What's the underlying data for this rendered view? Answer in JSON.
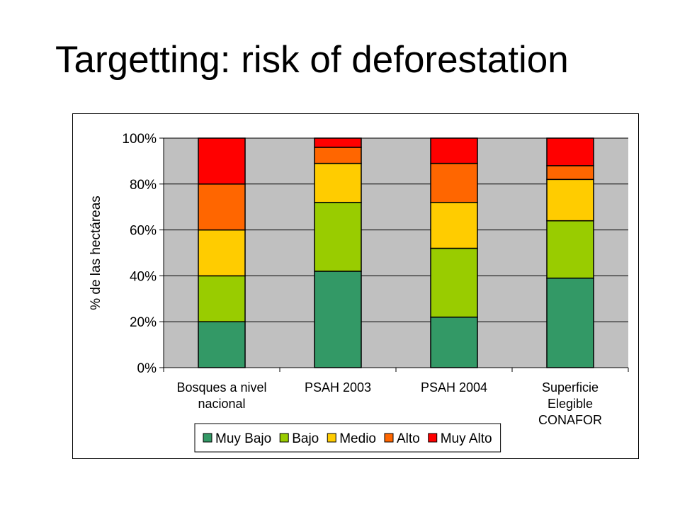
{
  "slide": {
    "title": "Targetting: risk of deforestation"
  },
  "colors": {
    "Muy Bajo": "#339966",
    "Bajo": "#99CC00",
    "Medio": "#FFCC00",
    "Alto": "#FF6600",
    "Muy Alto": "#FF0000",
    "plot_background": "#C0C0C0",
    "gridline": "#000000"
  },
  "chart_data": {
    "type": "bar",
    "stacked": true,
    "title": "",
    "ylabel": "% de las hectáreas",
    "xlabel": "",
    "ylim": [
      0,
      100
    ],
    "yticks": [
      "0%",
      "20%",
      "40%",
      "60%",
      "80%",
      "100%"
    ],
    "ytick_values": [
      0,
      20,
      40,
      60,
      80,
      100
    ],
    "grid": true,
    "legend_position": "bottom",
    "categories": [
      [
        "Bosques a nivel",
        "nacional"
      ],
      [
        "PSAH 2003"
      ],
      [
        "PSAH 2004"
      ],
      [
        "Superficie",
        "Elegible",
        "CONAFOR"
      ]
    ],
    "series": [
      {
        "name": "Muy Bajo",
        "values": [
          20,
          42,
          22,
          39
        ]
      },
      {
        "name": "Bajo",
        "values": [
          20,
          30,
          30,
          25
        ]
      },
      {
        "name": "Medio",
        "values": [
          20,
          17,
          20,
          18
        ]
      },
      {
        "name": "Alto",
        "values": [
          20,
          7,
          17,
          6
        ]
      },
      {
        "name": "Muy Alto",
        "values": [
          20,
          4,
          11,
          12
        ]
      }
    ]
  }
}
